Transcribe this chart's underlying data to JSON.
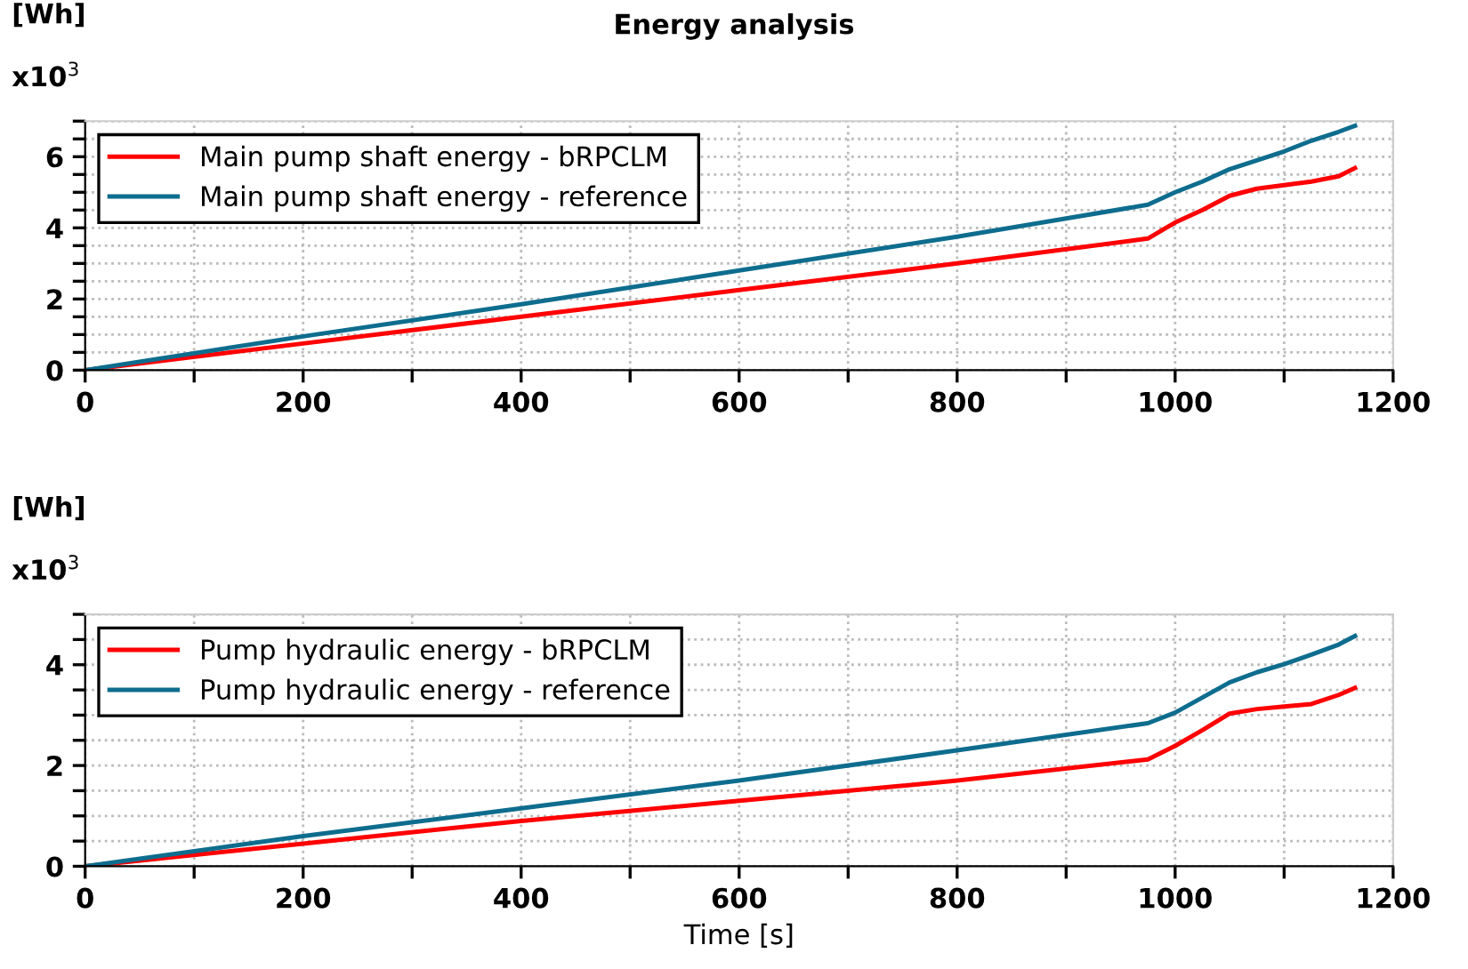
{
  "chart_data": [
    {
      "type": "line",
      "title": "Energy analysis",
      "ylabel": "[Wh]",
      "annotations": [
        "x10$^{3}$"
      ],
      "xlim": [
        0,
        1200
      ],
      "xticks": [
        0,
        {
          "value": 100,
          "label": null
        },
        200,
        {
          "value": 300,
          "label": null
        },
        400,
        {
          "value": 500,
          "label": null
        },
        600,
        {
          "value": 700,
          "label": null
        },
        800,
        {
          "value": 900,
          "label": null
        },
        1000,
        {
          "value": 1100,
          "label": null
        },
        1200
      ],
      "ylim": [
        0,
        7
      ],
      "yticks": [
        0,
        {
          "value": 0.5,
          "label": null
        },
        {
          "value": 1,
          "label": null
        },
        {
          "value": 1.5,
          "label": null
        },
        2,
        {
          "value": 2.5,
          "label": null
        },
        {
          "value": 3,
          "label": null
        },
        {
          "value": 3.5,
          "label": null
        },
        4,
        {
          "value": 4.5,
          "label": null
        },
        {
          "value": 5,
          "label": null
        },
        {
          "value": 5.5,
          "label": null
        },
        6,
        {
          "value": 6.5,
          "label": null
        },
        {
          "value": 7,
          "label": null
        }
      ],
      "grid": true,
      "legend": "top left",
      "line_style": "solid",
      "marker": "none",
      "series": [
        {
          "name": "Main pump shaft energy - bRPCLM",
          "color": "#ff0000",
          "x": [
            0,
            200,
            400,
            600,
            800,
            975,
            1000,
            1025,
            1050,
            1075,
            1100,
            1125,
            1150,
            1165
          ],
          "values": [
            0,
            0.75,
            1.5,
            2.25,
            3.0,
            3.7,
            4.15,
            4.5,
            4.9,
            5.1,
            5.2,
            5.3,
            5.45,
            5.68
          ]
        },
        {
          "name": "Main pump shaft energy - reference",
          "color": "#0e6d8e",
          "x": [
            0,
            200,
            400,
            600,
            800,
            975,
            1000,
            1025,
            1050,
            1075,
            1100,
            1125,
            1150,
            1165
          ],
          "values": [
            0,
            0.95,
            1.85,
            2.8,
            3.75,
            4.65,
            5.0,
            5.3,
            5.65,
            5.9,
            6.15,
            6.45,
            6.7,
            6.87
          ]
        }
      ]
    },
    {
      "type": "line",
      "xlabel": "Time [s]",
      "ylabel": "[Wh]",
      "annotations": [
        "x10$^{3}$"
      ],
      "xlim": [
        0,
        1200
      ],
      "xticks": [
        0,
        {
          "value": 100,
          "label": null
        },
        200,
        {
          "value": 300,
          "label": null
        },
        400,
        {
          "value": 500,
          "label": null
        },
        600,
        {
          "value": 700,
          "label": null
        },
        800,
        {
          "value": 900,
          "label": null
        },
        1000,
        {
          "value": 1100,
          "label": null
        },
        1200
      ],
      "ylim": [
        0,
        5
      ],
      "yticks": [
        0,
        {
          "value": 0.5,
          "label": null
        },
        {
          "value": 1,
          "label": null
        },
        {
          "value": 1.5,
          "label": null
        },
        2,
        {
          "value": 2.5,
          "label": null
        },
        {
          "value": 3,
          "label": null
        },
        {
          "value": 3.5,
          "label": null
        },
        4,
        {
          "value": 4.5,
          "label": null
        },
        {
          "value": 5,
          "label": null
        }
      ],
      "grid": true,
      "legend": "top left",
      "line_style": "solid",
      "marker": "none",
      "series": [
        {
          "name": "Pump hydraulic energy - bRPCLM",
          "color": "#ff0000",
          "x": [
            0,
            200,
            400,
            600,
            800,
            975,
            1000,
            1025,
            1050,
            1075,
            1100,
            1125,
            1150,
            1165
          ],
          "values": [
            0,
            0.45,
            0.9,
            1.3,
            1.7,
            2.12,
            2.39,
            2.7,
            3.03,
            3.12,
            3.17,
            3.22,
            3.4,
            3.54
          ]
        },
        {
          "name": "Pump hydraulic energy - reference",
          "color": "#0e6d8e",
          "x": [
            0,
            200,
            400,
            600,
            800,
            975,
            1000,
            1025,
            1050,
            1075,
            1100,
            1125,
            1150,
            1165
          ],
          "values": [
            0,
            0.6,
            1.15,
            1.7,
            2.3,
            2.84,
            3.05,
            3.35,
            3.65,
            3.85,
            4.01,
            4.2,
            4.4,
            4.57
          ]
        }
      ]
    }
  ]
}
